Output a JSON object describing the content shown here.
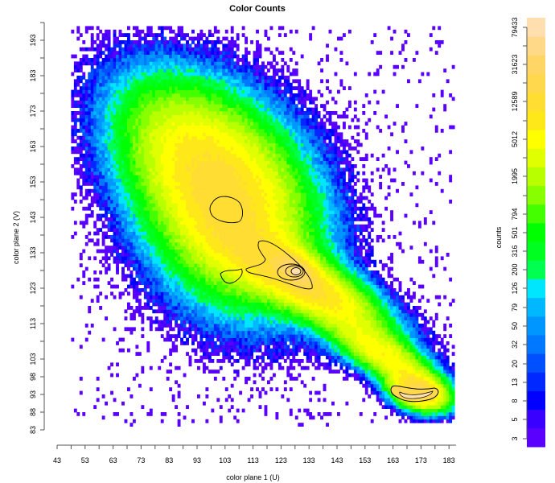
{
  "chart_data": {
    "type": "heatmap",
    "title": "Color Counts",
    "xlabel": "color plane 1 (U)",
    "ylabel": "color plane 2 (V)",
    "colorbar_label": "counts",
    "x_ticks": [
      43,
      53,
      63,
      73,
      83,
      93,
      103,
      113,
      123,
      133,
      143,
      153,
      163,
      173,
      183
    ],
    "y_ticks": [
      83,
      88,
      93,
      98,
      103,
      113,
      123,
      133,
      143,
      153,
      163,
      173,
      183,
      193
    ],
    "xlim": [
      43,
      185
    ],
    "ylim": [
      80,
      197
    ],
    "colorbar_ticks": [
      3,
      5,
      8,
      13,
      20,
      32,
      50,
      79,
      126,
      200,
      316,
      501,
      794,
      1995,
      5012,
      12589,
      31623,
      79433
    ],
    "colorbar_colors": [
      "#5a00ff",
      "#3a00ff",
      "#0000ff",
      "#0028ff",
      "#0050ff",
      "#0078ff",
      "#0096ff",
      "#00b8ff",
      "#00e6ff",
      "#00ff50",
      "#00ff20",
      "#00ff00",
      "#44ff00",
      "#88ff00",
      "#b8ff00",
      "#e0ff00",
      "#ffff00",
      "#ffe81a",
      "#ffdd33",
      "#ffd84d",
      "#ffd666",
      "#ffd888",
      "#ffdfb0"
    ],
    "grid": false,
    "annotations": [
      {
        "type": "contour",
        "color": "#000000",
        "note": "high density peak near U=128, V=128"
      },
      {
        "type": "contour",
        "color": "#000000",
        "note": "secondary region near U=103, V=146"
      },
      {
        "type": "contour",
        "color": "#000000",
        "note": "dense elongated cluster near U=170, V=93"
      }
    ],
    "density_description": "Joint histogram of U/V chroma counts forming a diagonal comet-shaped distribution from upper-left (U≈60-110, V≈150-190, low counts) to lower-right (U≈165-180, V≈88-95, very high counts); core region U≈95-135, V≈120-150 with counts ~800-5000."
  }
}
